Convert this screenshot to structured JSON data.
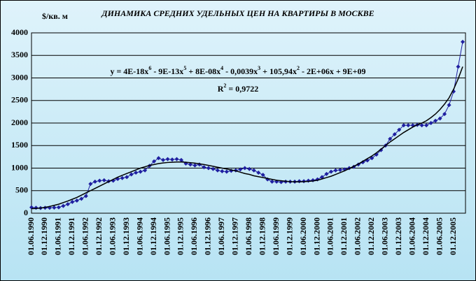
{
  "chart_data": {
    "type": "line",
    "title": "ДИНАМИКА СРЕДНИХ УДЕЛЬНЫХ ЦЕН НА КВАРТИРЫ В МОСКВЕ",
    "y_label": "$/кв. м",
    "equation_parts": [
      "y = 4E-18x",
      "6",
      " - 9E-13x",
      "5",
      " + 8E-08x",
      "4",
      " - 0,0039x",
      "3",
      " + 105,94x",
      "2",
      " - 2E+06x + 9E+09"
    ],
    "r2_parts": [
      "R",
      "2",
      " = 0,9722"
    ],
    "categories": [
      "01.06.1990",
      null,
      null,
      "01.12.1990",
      null,
      null,
      "01.06.1991",
      null,
      null,
      "01.12.1991",
      null,
      null,
      "01.06.1992",
      null,
      null,
      "01.12.1992",
      null,
      null,
      "01.06.1993",
      null,
      null,
      "01.12.1993",
      null,
      null,
      "01.06.1994",
      null,
      null,
      "01.12.1994",
      null,
      null,
      "01.06.1995",
      null,
      null,
      "01.12.1995",
      null,
      null,
      "01.06.1996",
      null,
      null,
      "01.12.1996",
      null,
      null,
      "01.06.1997",
      null,
      null,
      "01.12.1997",
      null,
      null,
      "01.06.1998",
      null,
      null,
      "01.12.1998",
      null,
      null,
      "01.06.1999",
      null,
      null,
      "01.12.1999",
      null,
      null,
      "01.06.2000",
      null,
      null,
      "01.12.2000",
      null,
      null,
      "01.06.2001",
      null,
      null,
      "01.12.2001",
      null,
      null,
      "01.06.2002",
      null,
      null,
      "01.12.2002",
      null,
      null,
      "01.06.2003",
      null,
      null,
      "01.12.2003",
      null,
      null,
      "01.06.2004",
      null,
      null,
      "01.12.2004",
      null,
      null,
      "01.06.2005",
      null,
      null,
      "01.12.2005",
      null,
      null
    ],
    "series": [
      {
        "color": "#1f1fa0",
        "marker": "diamond",
        "values": [
          130,
          120,
          115,
          120,
          120,
          125,
          130,
          160,
          200,
          250,
          280,
          320,
          380,
          650,
          700,
          720,
          730,
          710,
          720,
          760,
          780,
          800,
          860,
          900,
          920,
          950,
          1050,
          1150,
          1220,
          1180,
          1200,
          1190,
          1200,
          1180,
          1100,
          1080,
          1060,
          1080,
          1020,
          1000,
          980,
          950,
          930,
          920,
          940,
          950,
          970,
          1000,
          980,
          950,
          900,
          850,
          750,
          700,
          700,
          690,
          700,
          700,
          700,
          710,
          710,
          720,
          730,
          750,
          800,
          870,
          920,
          950,
          960,
          970,
          1000,
          1030,
          1080,
          1130,
          1170,
          1220,
          1300,
          1400,
          1500,
          1650,
          1750,
          1850,
          1950,
          1950,
          1950,
          1960,
          1950,
          1950,
          2000,
          2050,
          2100,
          2200,
          2400,
          2700,
          3250,
          3800
        ]
      },
      {
        "color": "#000000",
        "marker": "none",
        "values": [
          100,
          105,
          115,
          130,
          150,
          175,
          200,
          235,
          270,
          310,
          350,
          400,
          450,
          500,
          550,
          600,
          650,
          700,
          750,
          800,
          840,
          880,
          920,
          960,
          1000,
          1030,
          1060,
          1080,
          1100,
          1115,
          1125,
          1130,
          1135,
          1135,
          1130,
          1120,
          1110,
          1095,
          1080,
          1060,
          1040,
          1020,
          1000,
          980,
          960,
          940,
          910,
          880,
          860,
          830,
          810,
          790,
          770,
          750,
          730,
          720,
          710,
          700,
          695,
          695,
          700,
          705,
          715,
          730,
          760,
          790,
          820,
          860,
          900,
          940,
          990,
          1040,
          1090,
          1150,
          1210,
          1270,
          1340,
          1420,
          1500,
          1580,
          1650,
          1720,
          1790,
          1850,
          1910,
          1960,
          2000,
          2050,
          2120,
          2200,
          2300,
          2420,
          2560,
          2750,
          2980,
          3250
        ]
      }
    ],
    "ylim": [
      0,
      4000
    ],
    "yticks": [
      0,
      500,
      1000,
      1500,
      2000,
      2500,
      3000,
      3500,
      4000
    ],
    "grid": true
  }
}
